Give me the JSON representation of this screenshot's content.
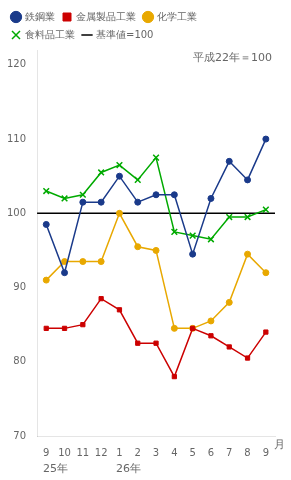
{
  "chart_data": {
    "type": "line",
    "categories": [
      "9",
      "10",
      "11",
      "12",
      "1",
      "2",
      "3",
      "4",
      "5",
      "6",
      "7",
      "8",
      "9"
    ],
    "series": [
      {
        "name": "鉄鋼業",
        "color": "#1a3a8a",
        "marker": "o",
        "values": [
          98.5,
          92.0,
          101.5,
          101.5,
          105.0,
          101.5,
          102.5,
          102.5,
          94.5,
          102.0,
          107.0,
          104.5,
          110.0
        ]
      },
      {
        "name": "金属製品工業",
        "color": "#cc0000",
        "marker": "s",
        "values": [
          84.5,
          84.5,
          85.0,
          88.5,
          87.0,
          82.5,
          82.5,
          78.0,
          84.5,
          83.5,
          82.0,
          80.5,
          84.0
        ]
      },
      {
        "name": "化学工業",
        "color": "#e8a800",
        "marker": "o",
        "values": [
          91.0,
          93.5,
          93.5,
          93.5,
          100.0,
          95.5,
          95.0,
          84.5,
          84.5,
          85.5,
          88.0,
          94.5,
          92.0
        ]
      },
      {
        "name": "食料品工業",
        "color": "#00aa00",
        "marker": "x",
        "values": [
          103.0,
          102.0,
          102.5,
          105.5,
          106.5,
          104.5,
          107.5,
          97.5,
          97.0,
          96.5,
          99.5,
          99.5,
          100.5
        ]
      }
    ],
    "hlines": [
      {
        "y": 100,
        "name": "基準値=100",
        "color": "#000000"
      }
    ],
    "ylim": [
      70,
      122
    ],
    "yticks": [
      70,
      80,
      90,
      100,
      110,
      120
    ],
    "grid": false,
    "legend": "upper left",
    "xlabel": "月",
    "annotations": [
      {
        "text": "平成22年＝100"
      },
      {
        "text": "25年",
        "x": 0.5
      },
      {
        "text": "26年",
        "x": 4.5
      }
    ]
  }
}
